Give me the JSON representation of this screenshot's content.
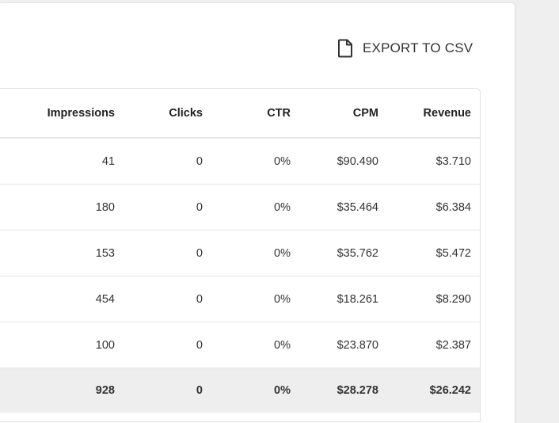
{
  "toolbar": {
    "export_label": "EXPORT TO CSV",
    "export_icon": "file-icon"
  },
  "table": {
    "columns": [
      "Impressions",
      "Clicks",
      "CTR",
      "CPM",
      "Revenue"
    ],
    "rows": [
      [
        "41",
        "0",
        "0%",
        "$90.490",
        "$3.710"
      ],
      [
        "180",
        "0",
        "0%",
        "$35.464",
        "$6.384"
      ],
      [
        "153",
        "0",
        "0%",
        "$35.762",
        "$5.472"
      ],
      [
        "454",
        "0",
        "0%",
        "$18.261",
        "$8.290"
      ],
      [
        "100",
        "0",
        "0%",
        "$23.870",
        "$2.387"
      ]
    ],
    "total": [
      "928",
      "0",
      "0%",
      "$28.278",
      "$26.242"
    ]
  }
}
